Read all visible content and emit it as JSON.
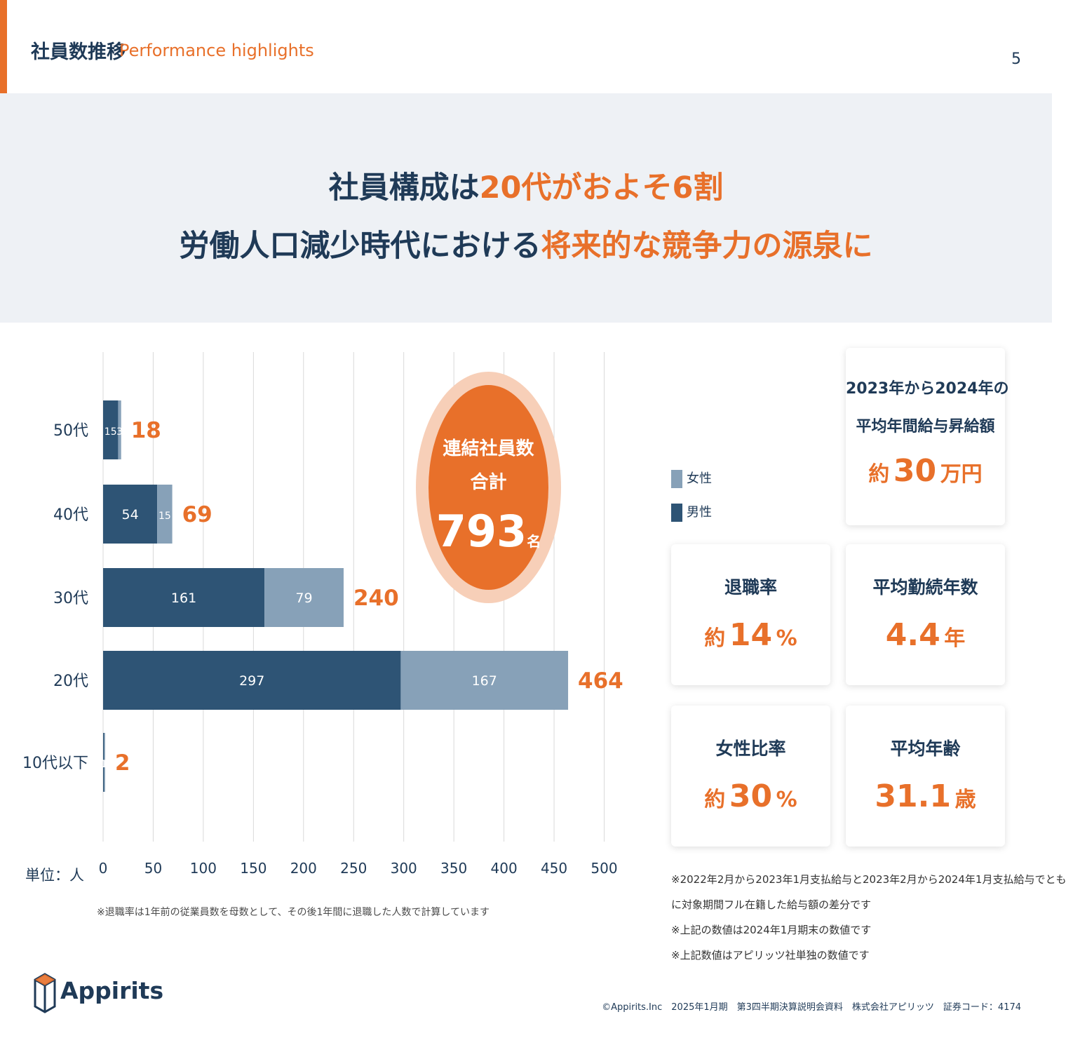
{
  "header": {
    "title": "社員数推移",
    "subtitle": "Performance highlights",
    "page_number": "5"
  },
  "hero": {
    "line1_dark": "社員構成は",
    "line1_orange": "20代がおよそ6割",
    "line2_dark": "労働人口減少時代における",
    "line2_orange": "将来的な競争力の源泉に"
  },
  "chart_data": {
    "type": "bar",
    "orientation": "horizontal",
    "stacked": true,
    "categories": [
      "50代",
      "40代",
      "30代",
      "20代",
      "10代以下"
    ],
    "series": [
      {
        "name": "男性",
        "values": [
          15,
          54,
          161,
          297,
          1
        ],
        "color": "#2e5475"
      },
      {
        "name": "女性",
        "values": [
          3,
          15,
          79,
          167,
          1
        ],
        "color": "#87a1b8"
      }
    ],
    "totals": [
      18,
      69,
      240,
      464,
      2
    ],
    "xlim": [
      0,
      500
    ],
    "xticks": [
      0,
      50,
      100,
      150,
      200,
      250,
      300,
      350,
      400,
      450,
      500
    ],
    "xlabel": "単位：人",
    "grid": true
  },
  "chart_note": "※退職率は1年前の従業員数を母数として、その後1年間に退職した人数で計算しています",
  "bubble": {
    "line1": "連結社員数",
    "line2": "合計",
    "value": "793",
    "unit": "名"
  },
  "legend": {
    "female": "女性",
    "male": "男性"
  },
  "cards": {
    "salary": {
      "title_line1": "2023年から2024年の",
      "title_line2": "平均年間給与昇給額",
      "prefix": "約",
      "value": "30",
      "unit": "万円"
    },
    "turnover": {
      "title": "退職率",
      "prefix": "約",
      "value": "14",
      "unit": "%"
    },
    "tenure": {
      "title": "平均勤続年数",
      "value": "4.4",
      "unit": "年"
    },
    "female_ratio": {
      "title": "女性比率",
      "prefix": "約",
      "value": "30",
      "unit": "%"
    },
    "avg_age": {
      "title": "平均年齢",
      "value": "31.1",
      "unit": "歳"
    }
  },
  "notes": [
    "※2022年2月から2023年1月支払給与と2023年2月から2024年1月支払給与でとも",
    "に対象期間フル在籍した給与額の差分です",
    "※上記の数値は2024年1月期末の数値です",
    "※上記数値はアピリッツ社単独の数値です"
  ],
  "logo_text": "Appirits",
  "footer": "©Appirits.Inc　2025年1月期　第3四半期決算説明会資料　株式会社アピリッツ　証券コード：4174",
  "colors": {
    "accent": "#e8702a",
    "navy": "#1f3a57",
    "male": "#2e5475",
    "female": "#87a1b8",
    "hero_bg": "#eef1f5"
  }
}
